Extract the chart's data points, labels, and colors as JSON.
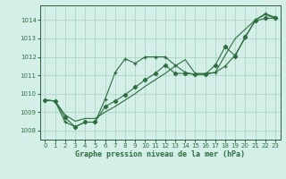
{
  "xlabel": "Graphe pression niveau de la mer (hPa)",
  "bg_color": "#d4eee8",
  "grid_color": "#b0d4c8",
  "line_color": "#2d6e3e",
  "xlim": [
    -0.5,
    23.5
  ],
  "ylim": [
    1007.5,
    1014.8
  ],
  "yticks": [
    1008,
    1009,
    1010,
    1011,
    1012,
    1013,
    1014
  ],
  "xticks": [
    0,
    1,
    2,
    3,
    4,
    5,
    6,
    7,
    8,
    9,
    10,
    11,
    12,
    13,
    14,
    15,
    16,
    17,
    18,
    19,
    20,
    21,
    22,
    23
  ],
  "line1_x": [
    0,
    1,
    2,
    3,
    4,
    5,
    6,
    7,
    8,
    9,
    10,
    11,
    12,
    13,
    14,
    15,
    16,
    17,
    18,
    19,
    20,
    21,
    22,
    23
  ],
  "line1_y": [
    1009.65,
    1009.6,
    1008.45,
    1008.2,
    1008.45,
    1008.45,
    1009.7,
    1011.15,
    1011.9,
    1011.65,
    1012.0,
    1012.0,
    1012.0,
    1011.55,
    1011.15,
    1011.05,
    1011.05,
    1011.15,
    1011.5,
    1012.1,
    1013.05,
    1014.0,
    1014.35,
    1014.15
  ],
  "line2_x": [
    0,
    1,
    2,
    3,
    4,
    5,
    6,
    7,
    8,
    9,
    10,
    11,
    12,
    13,
    14,
    15,
    16,
    17,
    18,
    19,
    20,
    21,
    22,
    23
  ],
  "line2_y": [
    1009.65,
    1009.6,
    1008.7,
    1008.2,
    1008.45,
    1008.45,
    1009.3,
    1009.6,
    1009.95,
    1010.35,
    1010.75,
    1011.1,
    1011.55,
    1011.1,
    1011.1,
    1011.05,
    1011.05,
    1011.55,
    1012.55,
    1012.05,
    1013.1,
    1013.95,
    1014.1,
    1014.1
  ],
  "line3_x": [
    0,
    1,
    2,
    3,
    4,
    5,
    6,
    7,
    8,
    9,
    10,
    11,
    12,
    13,
    14,
    15,
    16,
    17,
    18,
    19,
    20,
    21,
    22,
    23
  ],
  "line3_y": [
    1009.65,
    1009.6,
    1008.85,
    1008.5,
    1008.65,
    1008.65,
    1009.0,
    1009.3,
    1009.65,
    1010.0,
    1010.4,
    1010.75,
    1011.1,
    1011.5,
    1011.85,
    1011.1,
    1011.1,
    1011.15,
    1012.1,
    1013.0,
    1013.5,
    1014.0,
    1014.3,
    1014.1
  ]
}
